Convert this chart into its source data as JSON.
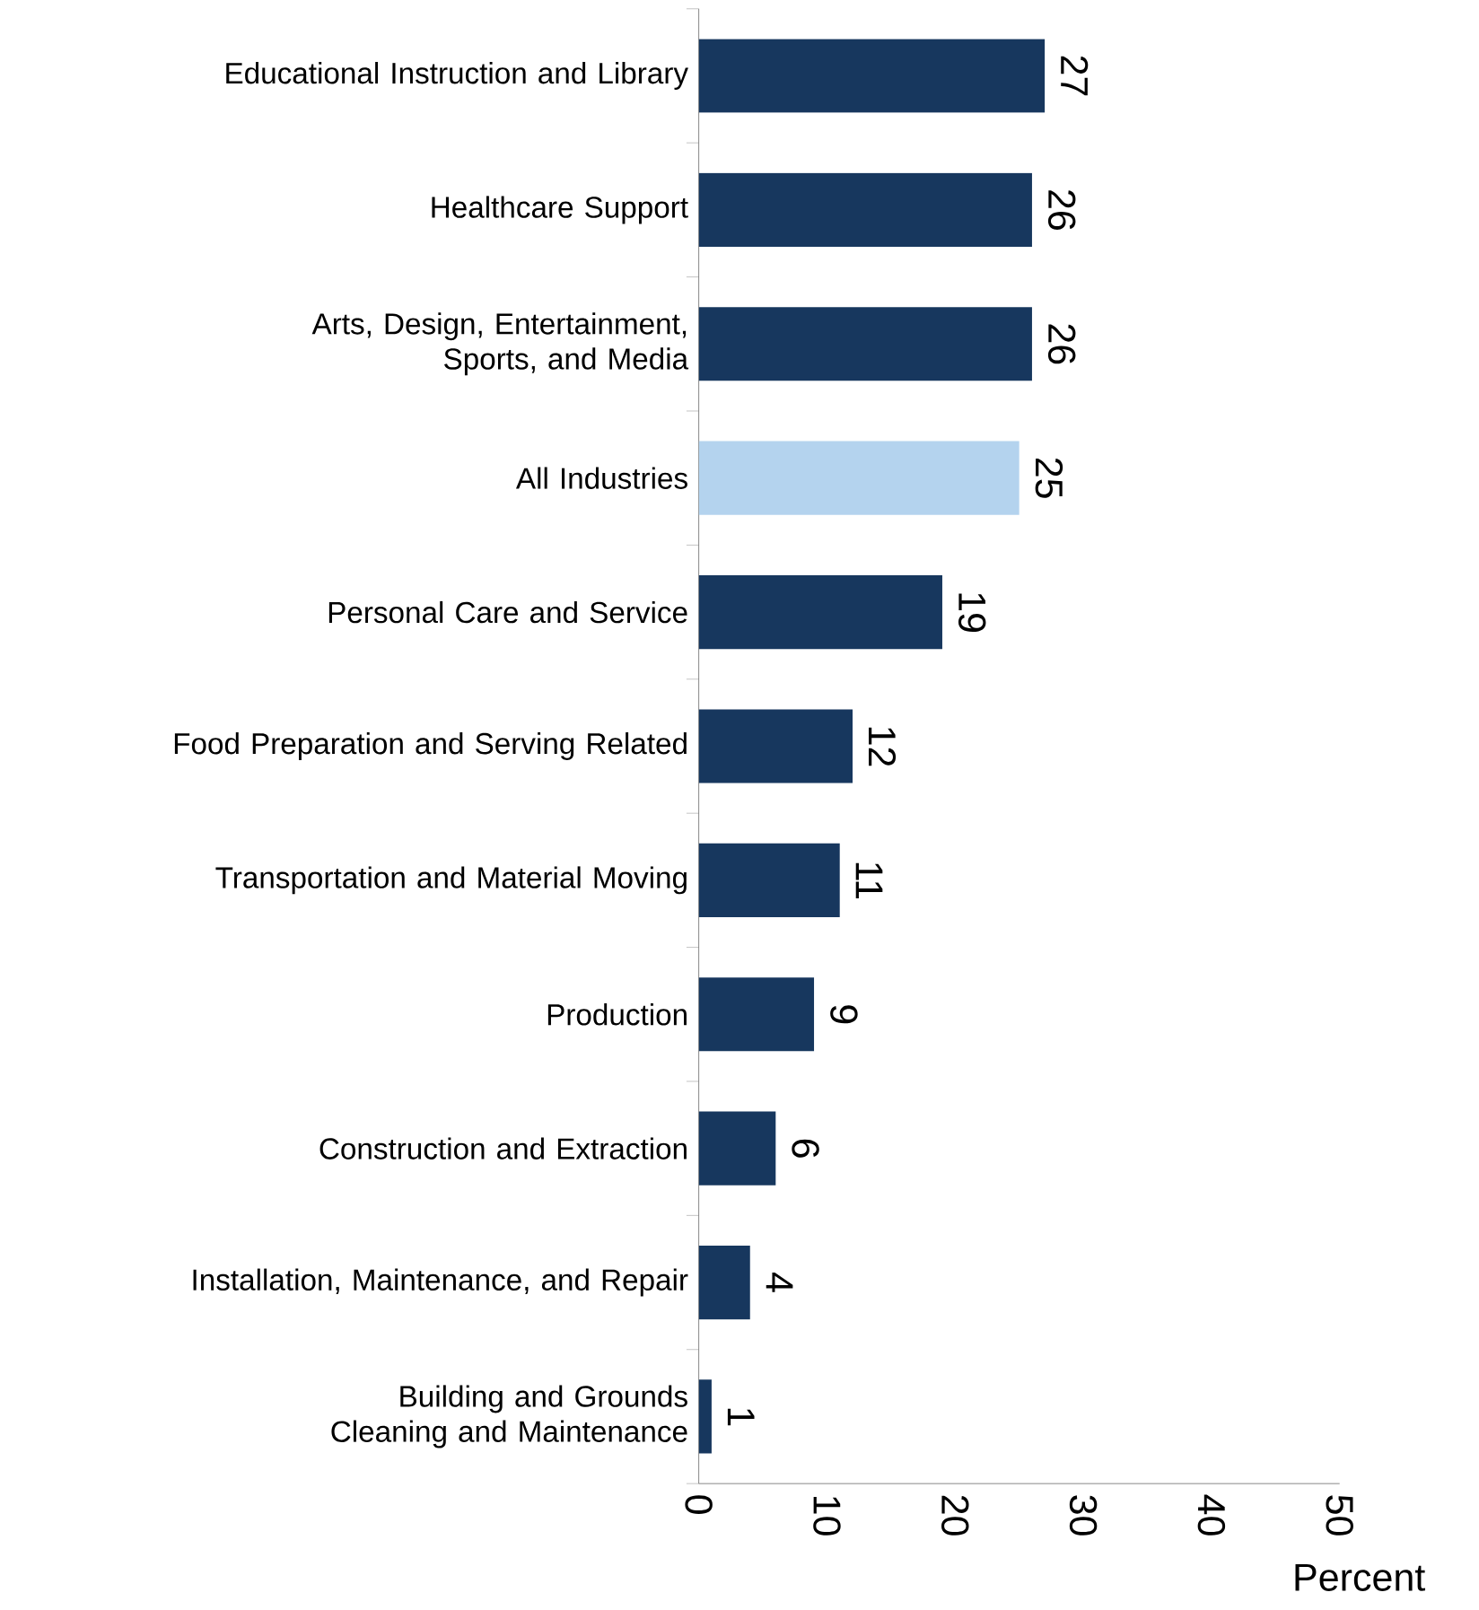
{
  "chart_data": {
    "type": "bar",
    "orientation": "horizontal",
    "categories": [
      "Educational Instruction and Library",
      "Healthcare Support",
      "Arts, Design, Entertainment, Sports, and Media",
      "All Industries",
      "Personal Care and Service",
      "Food Preparation and Serving Related",
      "Transportation and Material Moving",
      "Production",
      "Construction and Extraction",
      "Installation, Maintenance, and Repair",
      "Building and Grounds Cleaning and Maintenance"
    ],
    "values": [
      27,
      26,
      26,
      25,
      19,
      12,
      11,
      9,
      6,
      4,
      1
    ],
    "colors": [
      "#17375e",
      "#17375e",
      "#17375e",
      "#b4d3ee",
      "#17375e",
      "#17375e",
      "#17375e",
      "#17375e",
      "#17375e",
      "#17375e",
      "#17375e"
    ],
    "xlabel": "Percent",
    "xlim": [
      0,
      50
    ],
    "xticks": [
      0,
      10,
      20,
      30,
      40,
      50
    ],
    "data_labels": true
  }
}
